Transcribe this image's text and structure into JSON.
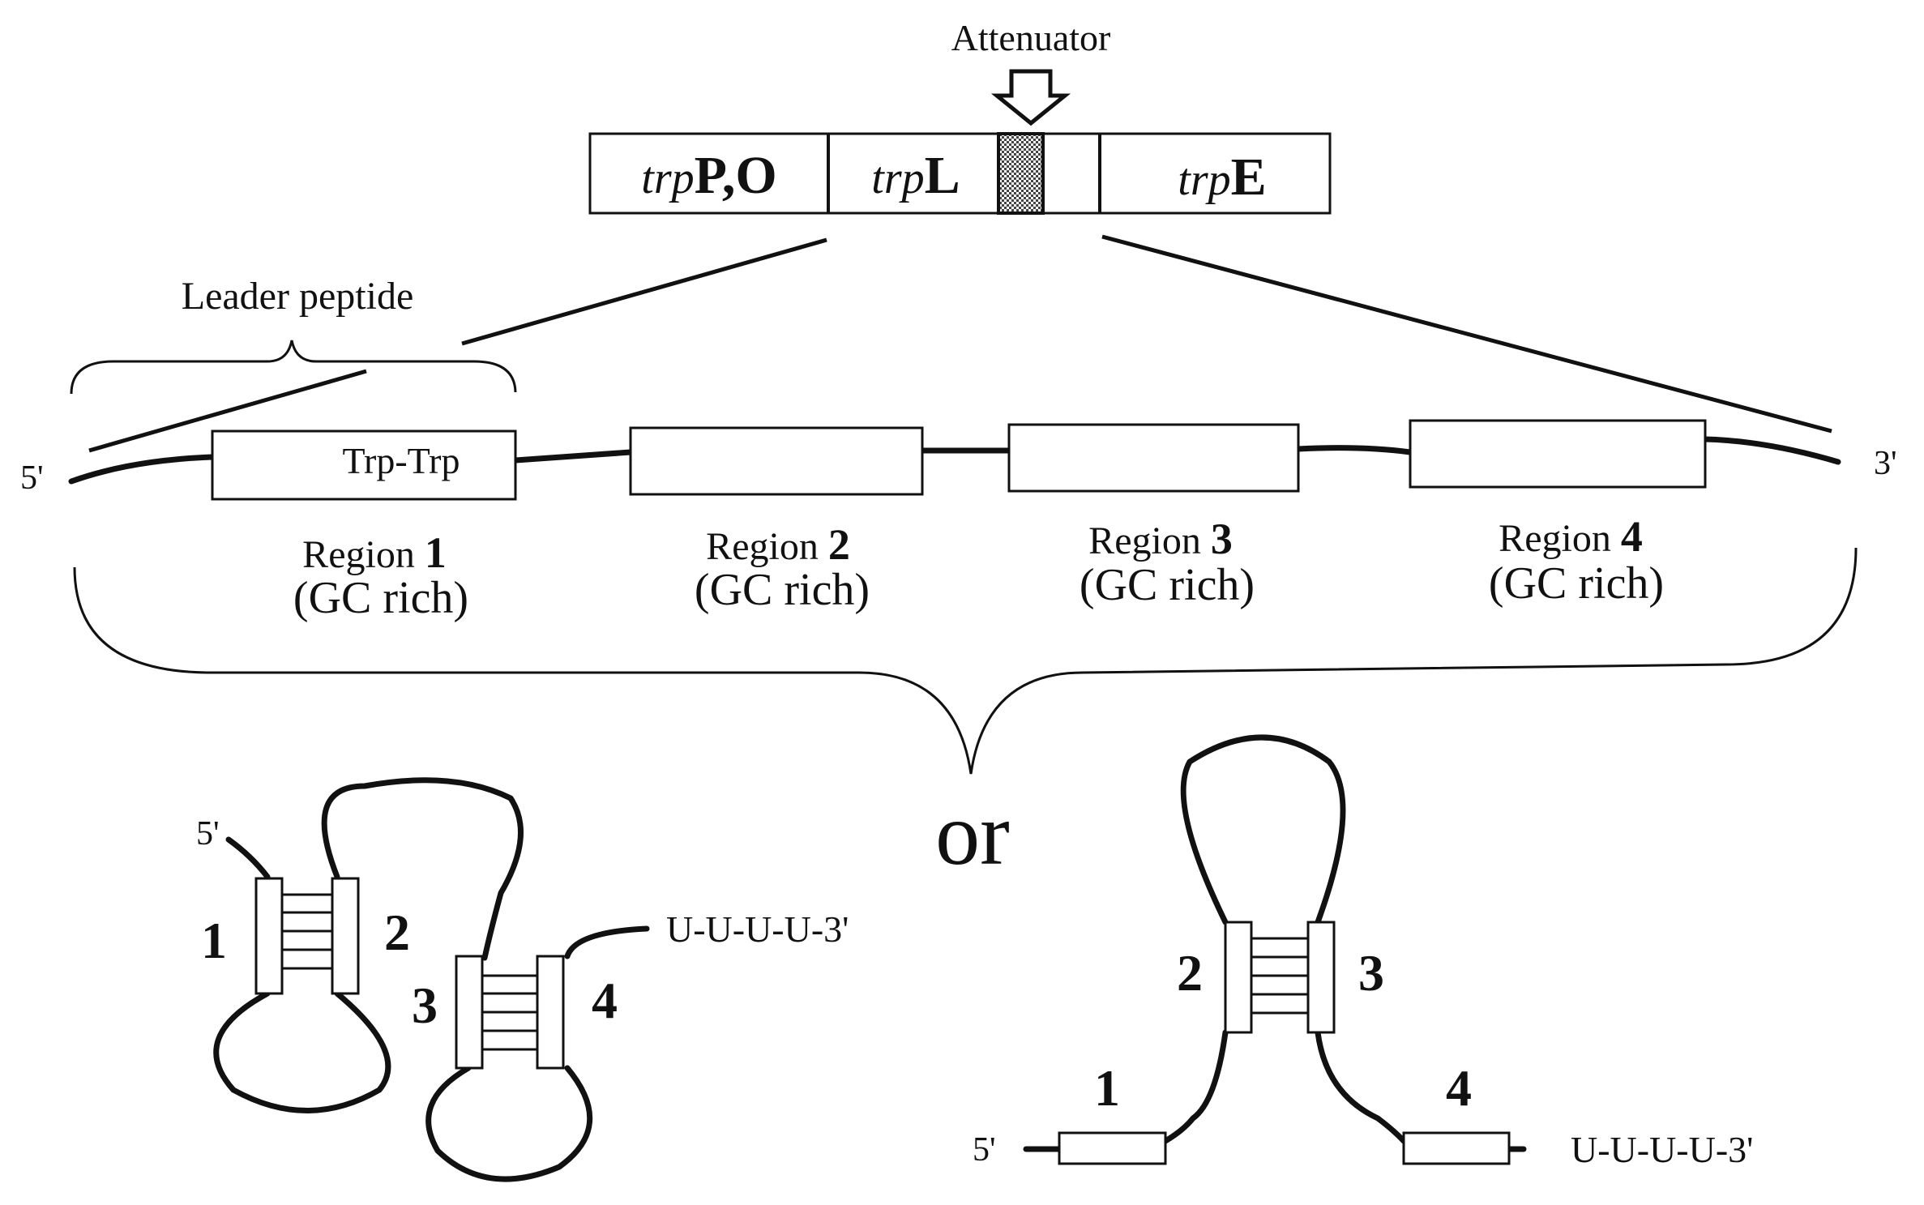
{
  "top": {
    "attenuator_label": "Attenuator",
    "operon": [
      {
        "prefix": "trp",
        "suffix": "P,O"
      },
      {
        "prefix": "trp",
        "suffix": "L"
      },
      {
        "prefix": "trp",
        "suffix": "E"
      }
    ]
  },
  "leader": {
    "label": "Leader peptide",
    "trp_trp": "Trp-Trp",
    "five_prime": "5'",
    "three_prime": "3'"
  },
  "regions": [
    {
      "word": "Region",
      "num": "1",
      "note": "(GC rich)"
    },
    {
      "word": "Region",
      "num": "2",
      "note": "(GC rich)"
    },
    {
      "word": "Region",
      "num": "3",
      "note": "(GC rich)"
    },
    {
      "word": "Region",
      "num": "4",
      "note": "(GC rich)"
    }
  ],
  "or_label": "or",
  "left_structure": {
    "five_prime": "5'",
    "tail": "U-U-U-U-3'",
    "numbers": [
      "1",
      "2",
      "3",
      "4"
    ]
  },
  "right_structure": {
    "five_prime": "5'",
    "tail": "U-U-U-U-3'",
    "numbers": [
      "1",
      "2",
      "3",
      "4"
    ]
  }
}
